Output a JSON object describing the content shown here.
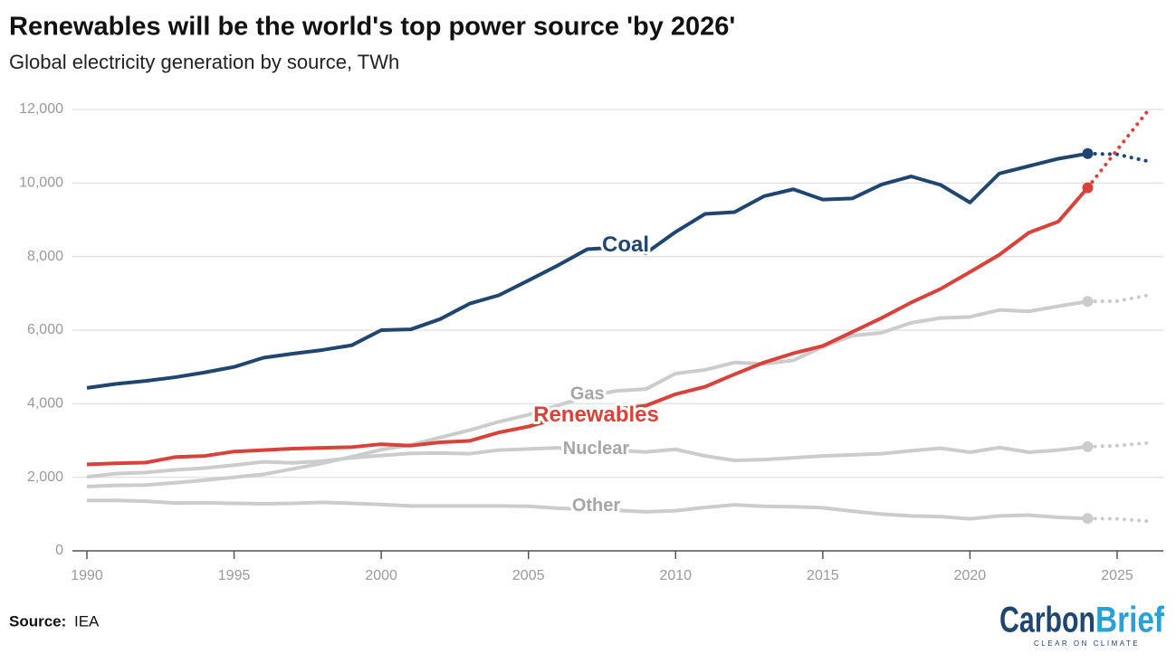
{
  "chart_data": {
    "type": "line",
    "title": "Renewables will be the world's top power source 'by 2026'",
    "subtitle": "Global electricity generation by source, TWh",
    "source_label": "Source:",
    "source": "IEA",
    "logo": {
      "part1": "Carbon",
      "part2": "Brief",
      "tagline": "CLEAR ON CLIMATE"
    },
    "x": [
      1990,
      1991,
      1992,
      1993,
      1994,
      1995,
      1996,
      1997,
      1998,
      1999,
      2000,
      2001,
      2002,
      2003,
      2004,
      2005,
      2006,
      2007,
      2008,
      2009,
      2010,
      2011,
      2012,
      2013,
      2014,
      2015,
      2016,
      2017,
      2018,
      2019,
      2020,
      2021,
      2022,
      2023,
      2024,
      2025,
      2026
    ],
    "forecast_from": 2024,
    "series": [
      {
        "name": "Coal",
        "color": "#1f4670",
        "values": [
          4430,
          4540,
          4620,
          4720,
          4850,
          5000,
          5250,
          5360,
          5460,
          5590,
          6000,
          6020,
          6300,
          6720,
          6950,
          7350,
          7760,
          8200,
          8250,
          8100,
          8670,
          9160,
          9210,
          9640,
          9830,
          9550,
          9580,
          9960,
          10180,
          9950,
          9470,
          10260,
          10460,
          10660,
          10800,
          10780,
          10600
        ]
      },
      {
        "name": "Gas",
        "color": "#cccccc",
        "values": [
          1750,
          1780,
          1790,
          1850,
          1920,
          2000,
          2080,
          2230,
          2380,
          2560,
          2750,
          2880,
          3080,
          3280,
          3510,
          3700,
          3950,
          4200,
          4350,
          4400,
          4820,
          4920,
          5120,
          5080,
          5180,
          5550,
          5850,
          5930,
          6200,
          6330,
          6360,
          6550,
          6510,
          6650,
          6780,
          6790,
          6940
        ]
      },
      {
        "name": "Renewables",
        "color": "#d9423a",
        "values": [
          2350,
          2380,
          2400,
          2550,
          2580,
          2700,
          2740,
          2780,
          2800,
          2820,
          2900,
          2860,
          2950,
          2990,
          3220,
          3380,
          3600,
          3750,
          3850,
          3950,
          4260,
          4460,
          4800,
          5120,
          5370,
          5570,
          5950,
          6330,
          6750,
          7120,
          7580,
          8050,
          8650,
          8950,
          9870,
          10900,
          11920
        ]
      },
      {
        "name": "Nuclear",
        "color": "#cccccc",
        "values": [
          2010,
          2100,
          2130,
          2200,
          2250,
          2330,
          2420,
          2390,
          2440,
          2530,
          2590,
          2650,
          2660,
          2640,
          2740,
          2770,
          2800,
          2720,
          2730,
          2690,
          2760,
          2580,
          2460,
          2480,
          2530,
          2580,
          2610,
          2640,
          2720,
          2790,
          2680,
          2810,
          2680,
          2740,
          2830,
          2860,
          2930
        ]
      },
      {
        "name": "Other",
        "color": "#cccccc",
        "values": [
          1370,
          1370,
          1350,
          1300,
          1310,
          1290,
          1280,
          1290,
          1320,
          1290,
          1260,
          1220,
          1220,
          1220,
          1220,
          1210,
          1160,
          1130,
          1100,
          1060,
          1090,
          1180,
          1250,
          1210,
          1200,
          1170,
          1080,
          1000,
          950,
          930,
          870,
          950,
          970,
          910,
          880,
          870,
          810
        ]
      }
    ],
    "xlim": [
      1990,
      2026
    ],
    "xticks": [
      1990,
      1995,
      2000,
      2005,
      2010,
      2015,
      2020,
      2025
    ],
    "ylim": [
      0,
      12000
    ],
    "yticks": [
      0,
      {
        "value": 2000,
        "label": "2,000"
      },
      {
        "value": 4000,
        "label": "4,000"
      },
      {
        "value": 6000,
        "label": "6,000"
      },
      {
        "value": 8000,
        "label": "8,000"
      },
      {
        "value": 10000,
        "label": "10,000"
      },
      {
        "value": 12000,
        "label": "12,000"
      }
    ],
    "grid": true
  }
}
